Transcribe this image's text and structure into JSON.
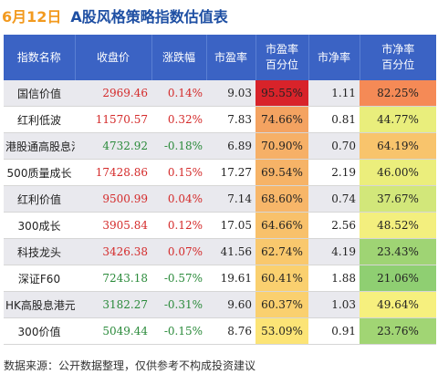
{
  "header": {
    "date": "6月12日",
    "title": "A股风格策略指数估值表"
  },
  "columns": [
    "指数名称",
    "收盘价",
    "涨跌幅",
    "市盈率",
    "市盈率\n百分位",
    "市净率",
    "市净率\n百分位"
  ],
  "colors": {
    "header_bg": "#3b63c4",
    "up": "#d42a2a",
    "down": "#2a8a3a"
  },
  "rows": [
    {
      "name": "国信价值",
      "close": "2969.46",
      "change": "0.14%",
      "dir": "up",
      "pe": "9.03",
      "pe_pct": "95.55%",
      "pe_color": "#d8232a",
      "pb": "1.11",
      "pb_pct": "82.25%",
      "pb_color": "#f58a56"
    },
    {
      "name": "红利低波",
      "close": "11570.57",
      "change": "0.32%",
      "dir": "up",
      "pe": "7.83",
      "pe_pct": "74.66%",
      "pe_color": "#f4a361",
      "pb": "0.81",
      "pb_pct": "44.77%",
      "pb_color": "#e9ee7c"
    },
    {
      "name": "港股通高股息港元",
      "close": "4732.92",
      "change": "-0.18%",
      "dir": "down",
      "pe": "6.89",
      "pe_pct": "70.90%",
      "pe_color": "#f6b067",
      "pb": "0.70",
      "pb_pct": "64.19%",
      "pb_color": "#f8c46c"
    },
    {
      "name": "500质量成长",
      "close": "17428.86",
      "change": "0.15%",
      "dir": "up",
      "pe": "17.27",
      "pe_pct": "69.54%",
      "pe_color": "#f6b367",
      "pb": "2.19",
      "pb_pct": "46.00%",
      "pb_color": "#ebee7c"
    },
    {
      "name": "红利价值",
      "close": "9500.99",
      "change": "0.04%",
      "dir": "up",
      "pe": "7.14",
      "pe_pct": "68.60%",
      "pe_color": "#f7b669",
      "pb": "0.74",
      "pb_pct": "37.67%",
      "pb_color": "#d2e77a"
    },
    {
      "name": "300成长",
      "close": "3905.84",
      "change": "0.12%",
      "dir": "up",
      "pe": "17.05",
      "pe_pct": "64.66%",
      "pe_color": "#f8c16b",
      "pb": "2.56",
      "pb_pct": "48.52%",
      "pb_color": "#f3ef7e"
    },
    {
      "name": "科技龙头",
      "close": "3426.38",
      "change": "0.07%",
      "dir": "up",
      "pe": "41.56",
      "pe_pct": "62.74%",
      "pe_color": "#f9c86d",
      "pb": "4.19",
      "pb_pct": "23.43%",
      "pb_color": "#9fd474"
    },
    {
      "name": "深证F60",
      "close": "7243.18",
      "change": "-0.57%",
      "dir": "down",
      "pe": "19.61",
      "pe_pct": "60.41%",
      "pe_color": "#fad06f",
      "pb": "1.88",
      "pb_pct": "21.06%",
      "pb_color": "#8fcf72"
    },
    {
      "name": "HK高股息港元",
      "close": "3182.27",
      "change": "-0.31%",
      "dir": "down",
      "pe": "9.60",
      "pe_pct": "60.37%",
      "pe_color": "#fad06f",
      "pb": "1.03",
      "pb_pct": "49.64%",
      "pb_color": "#f6f07e"
    },
    {
      "name": "300价值",
      "close": "5049.44",
      "change": "-0.15%",
      "dir": "down",
      "pe": "8.76",
      "pe_pct": "53.09%",
      "pe_color": "#fce476",
      "pb": "0.91",
      "pb_pct": "23.76%",
      "pb_color": "#a1d574"
    }
  ],
  "source": "数据来源：公开数据整理，仅供参考不构成投资建议"
}
